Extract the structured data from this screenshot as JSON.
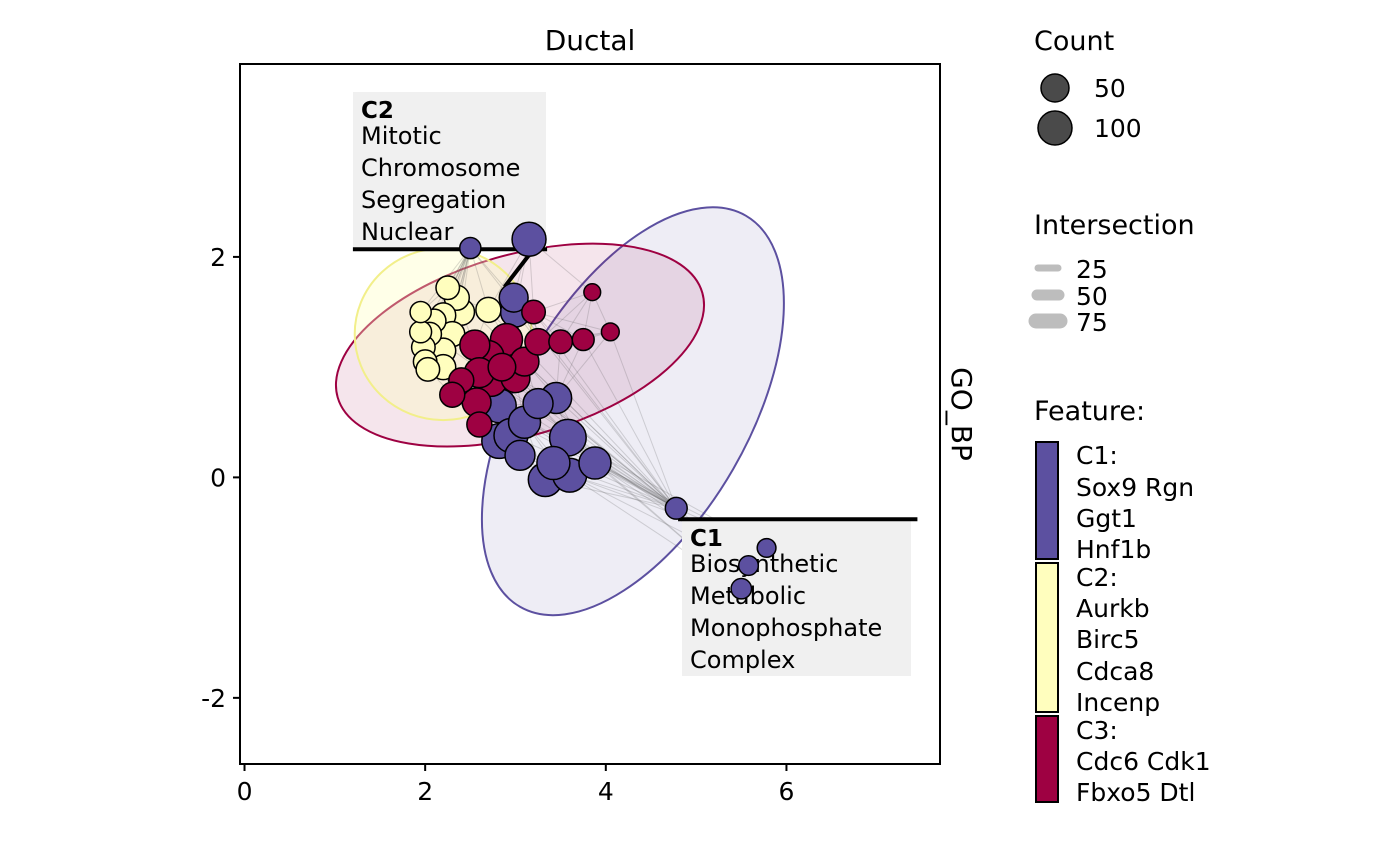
{
  "chart_data": {
    "type": "scatter",
    "title": "Ductal",
    "strip_label": "GO_BP",
    "xlim": [
      -0.05,
      7.7
    ],
    "ylim": [
      -2.6,
      3.75
    ],
    "x_ticks": [
      0,
      2,
      4,
      6
    ],
    "y_ticks": [
      -2,
      0,
      2
    ],
    "x_tick_labels": [
      "0",
      "2",
      "4",
      "6"
    ],
    "y_tick_labels": [
      "-2",
      "0",
      "2"
    ],
    "colors": {
      "C1": "#5c50a0",
      "C2": "#fffebe",
      "C3": "#9e0142",
      "edge": "#555555",
      "label_bg": "#f0f0f0"
    },
    "ellipses": [
      {
        "cluster": "C1",
        "cx": 4.3,
        "cy": 0.6,
        "rx": 2.5,
        "ry": 1.05,
        "angle_deg": -60
      },
      {
        "cluster": "C3",
        "cx": 3.05,
        "cy": 1.2,
        "rx": 2.1,
        "ry": 0.82,
        "angle_deg": -16
      },
      {
        "cluster": "C2",
        "cx": 2.2,
        "cy": 1.3,
        "rx": 0.98,
        "ry": 0.78,
        "angle_deg": 0
      }
    ],
    "points": [
      {
        "x": 2.5,
        "y": 2.08,
        "size": 18,
        "cluster": "C1"
      },
      {
        "x": 3.15,
        "y": 2.16,
        "size": 70,
        "cluster": "C1"
      },
      {
        "x": 2.98,
        "y": 1.63,
        "size": 45,
        "cluster": "C1"
      },
      {
        "x": 3.0,
        "y": 1.5,
        "size": 50,
        "cluster": "C1"
      },
      {
        "x": 2.82,
        "y": 0.65,
        "size": 70,
        "cluster": "C1"
      },
      {
        "x": 3.25,
        "y": 0.67,
        "size": 50,
        "cluster": "C1"
      },
      {
        "x": 3.45,
        "y": 0.72,
        "size": 55,
        "cluster": "C1"
      },
      {
        "x": 3.1,
        "y": 0.5,
        "size": 60,
        "cluster": "C1"
      },
      {
        "x": 2.95,
        "y": 0.38,
        "size": 70,
        "cluster": "C1"
      },
      {
        "x": 2.82,
        "y": 0.33,
        "size": 75,
        "cluster": "C1"
      },
      {
        "x": 3.58,
        "y": 0.36,
        "size": 85,
        "cluster": "C1"
      },
      {
        "x": 3.05,
        "y": 0.2,
        "size": 50,
        "cluster": "C1"
      },
      {
        "x": 3.42,
        "y": 0.13,
        "size": 65,
        "cluster": "C1"
      },
      {
        "x": 3.88,
        "y": 0.13,
        "size": 60,
        "cluster": "C1"
      },
      {
        "x": 3.33,
        "y": -0.02,
        "size": 70,
        "cluster": "C1"
      },
      {
        "x": 3.6,
        "y": 0.02,
        "size": 70,
        "cluster": "C1"
      },
      {
        "x": 4.78,
        "y": -0.28,
        "size": 20,
        "cluster": "C1"
      },
      {
        "x": 5.78,
        "y": -0.64,
        "size": 12,
        "cluster": "C1"
      },
      {
        "x": 5.58,
        "y": -0.8,
        "size": 14,
        "cluster": "C1"
      },
      {
        "x": 5.5,
        "y": -1.01,
        "size": 16,
        "cluster": "C1"
      },
      {
        "x": 2.25,
        "y": 1.72,
        "size": 25,
        "cluster": "C2"
      },
      {
        "x": 2.35,
        "y": 1.63,
        "size": 30,
        "cluster": "C2"
      },
      {
        "x": 1.95,
        "y": 1.5,
        "size": 18,
        "cluster": "C2"
      },
      {
        "x": 2.1,
        "y": 1.42,
        "size": 25,
        "cluster": "C2"
      },
      {
        "x": 2.2,
        "y": 1.47,
        "size": 30,
        "cluster": "C2"
      },
      {
        "x": 2.4,
        "y": 1.5,
        "size": 35,
        "cluster": "C2"
      },
      {
        "x": 2.7,
        "y": 1.52,
        "size": 30,
        "cluster": "C2"
      },
      {
        "x": 1.95,
        "y": 1.32,
        "size": 20,
        "cluster": "C2"
      },
      {
        "x": 2.05,
        "y": 1.3,
        "size": 25,
        "cluster": "C2"
      },
      {
        "x": 2.3,
        "y": 1.3,
        "size": 30,
        "cluster": "C2"
      },
      {
        "x": 1.98,
        "y": 1.18,
        "size": 25,
        "cluster": "C2"
      },
      {
        "x": 2.2,
        "y": 1.15,
        "size": 30,
        "cluster": "C2"
      },
      {
        "x": 2.0,
        "y": 1.05,
        "size": 25,
        "cluster": "C2"
      },
      {
        "x": 2.2,
        "y": 1.0,
        "size": 30,
        "cluster": "C2"
      },
      {
        "x": 2.03,
        "y": 0.98,
        "size": 25,
        "cluster": "C2"
      },
      {
        "x": 2.55,
        "y": 1.2,
        "size": 50,
        "cluster": "C3"
      },
      {
        "x": 2.7,
        "y": 1.1,
        "size": 55,
        "cluster": "C3"
      },
      {
        "x": 2.9,
        "y": 1.25,
        "size": 60,
        "cluster": "C3"
      },
      {
        "x": 2.85,
        "y": 1.0,
        "size": 40,
        "cluster": "C3"
      },
      {
        "x": 2.6,
        "y": 0.95,
        "size": 50,
        "cluster": "C3"
      },
      {
        "x": 2.73,
        "y": 0.88,
        "size": 60,
        "cluster": "C3"
      },
      {
        "x": 3.0,
        "y": 0.9,
        "size": 45,
        "cluster": "C3"
      },
      {
        "x": 2.4,
        "y": 0.88,
        "size": 30,
        "cluster": "C3"
      },
      {
        "x": 2.3,
        "y": 0.75,
        "size": 30,
        "cluster": "C3"
      },
      {
        "x": 2.57,
        "y": 0.68,
        "size": 45,
        "cluster": "C3"
      },
      {
        "x": 2.6,
        "y": 0.48,
        "size": 30,
        "cluster": "C3"
      },
      {
        "x": 3.2,
        "y": 1.5,
        "size": 25,
        "cluster": "C3"
      },
      {
        "x": 3.25,
        "y": 1.23,
        "size": 35,
        "cluster": "C3"
      },
      {
        "x": 3.1,
        "y": 1.05,
        "size": 45,
        "cluster": "C3"
      },
      {
        "x": 3.5,
        "y": 1.23,
        "size": 25,
        "cluster": "C3"
      },
      {
        "x": 3.75,
        "y": 1.25,
        "size": 20,
        "cluster": "C3"
      },
      {
        "x": 3.85,
        "y": 1.68,
        "size": 8,
        "cluster": "C3"
      },
      {
        "x": 4.05,
        "y": 1.32,
        "size": 10,
        "cluster": "C3"
      }
    ],
    "label_boxes": [
      {
        "cluster": "C2",
        "title": "C2",
        "lines": [
          "Mitotic",
          "Chromosome",
          "Segregation",
          "Nuclear"
        ],
        "line_y": 2.07,
        "line_x": [
          1.2,
          3.35
        ],
        "connector": [
          [
            2.88,
            1.73
          ],
          [
            3.2,
            2.07
          ]
        ]
      },
      {
        "cluster": "C1",
        "title": "C1",
        "lines": [
          "Biosynthetic",
          "Metabolic",
          "Monophosphate",
          "Complex"
        ],
        "line_y": -0.38,
        "line_x": [
          4.8,
          7.45
        ],
        "connector": []
      }
    ],
    "legend": {
      "count": {
        "title": "Count",
        "items": [
          {
            "label": "50",
            "size": 50
          },
          {
            "label": "100",
            "size": 100
          }
        ]
      },
      "intersection": {
        "title": "Intersection",
        "items": [
          {
            "label": "25",
            "width": 25
          },
          {
            "label": "50",
            "width": 50
          },
          {
            "label": "75",
            "width": 75
          }
        ]
      },
      "feature": {
        "title": "Feature:",
        "items": [
          {
            "cluster": "C1",
            "lines": [
              "C1:",
              "Sox9 Rgn",
              "Ggt1",
              "Hnf1b"
            ]
          },
          {
            "cluster": "C2",
            "lines": [
              "C2:",
              "Aurkb",
              "Birc5",
              "Cdca8",
              "Incenp"
            ]
          },
          {
            "cluster": "C3",
            "lines": [
              "C3:",
              "Cdc6 Cdk1",
              "Fbxo5 Dtl"
            ]
          }
        ]
      }
    }
  }
}
